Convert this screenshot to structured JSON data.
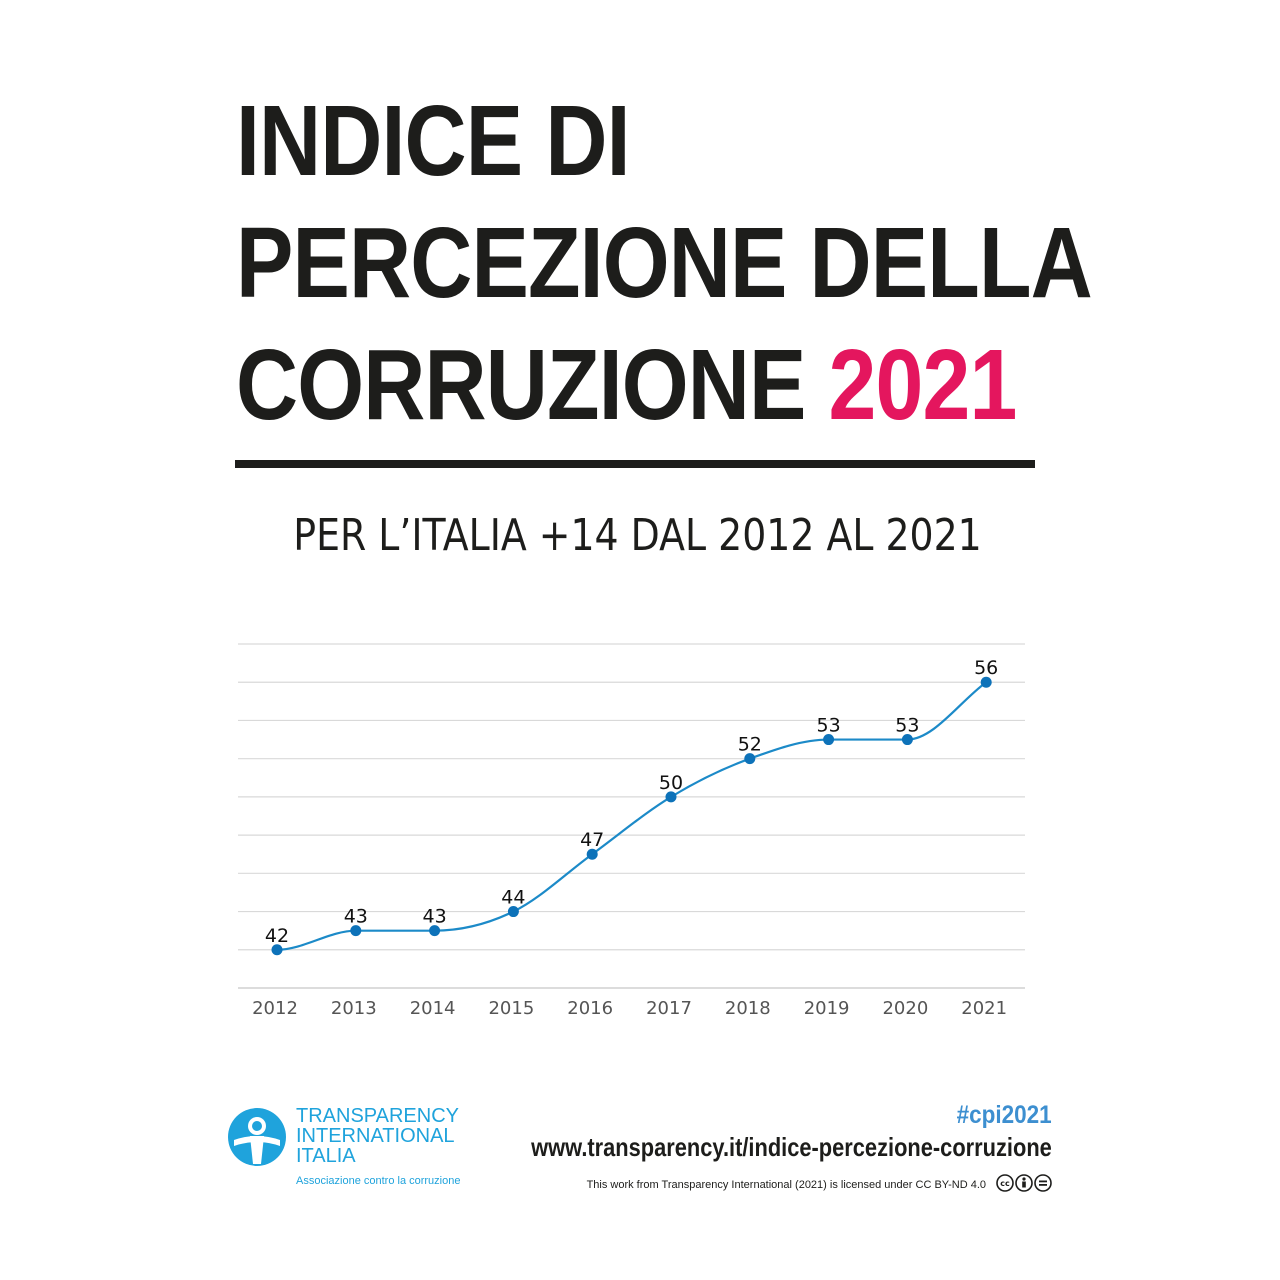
{
  "title": {
    "line1": "INDICE DI",
    "line2": "PERCEZIONE DELLA",
    "line3": "CORRUZIONE",
    "year": "2021"
  },
  "subtitle": "PER L’ITALIA +14 DAL 2012 AL 2021",
  "chart_data": {
    "type": "line",
    "title": "",
    "xlabel": "",
    "ylabel": "",
    "categories": [
      "2012",
      "2013",
      "2014",
      "2015",
      "2016",
      "2017",
      "2018",
      "2019",
      "2020",
      "2021"
    ],
    "series": [
      {
        "values": [
          42,
          43,
          43,
          44,
          47,
          50,
          52,
          53,
          53,
          56
        ]
      }
    ],
    "ylim": [
      40,
      58
    ],
    "grid": true,
    "line_color": "#1c8ac8",
    "point_color": "#0d72b9",
    "grid_color": "#d9d9d9"
  },
  "footer": {
    "logo_line1": "TRANSPARENCY",
    "logo_line2": "INTERNATIONAL",
    "logo_line3": "ITALIA",
    "logo_tagline": "Associazione contro la corruzione",
    "hashtag": "#cpi2021",
    "url": "www.transparency.it/indice-percezione-corruzione",
    "license": "This work from Transparency International (2021) is licensed under CC BY-ND 4.0"
  },
  "colors": {
    "accent": "#e4165e",
    "brand_blue": "#1fa3dc",
    "text": "#1d1d1b"
  }
}
